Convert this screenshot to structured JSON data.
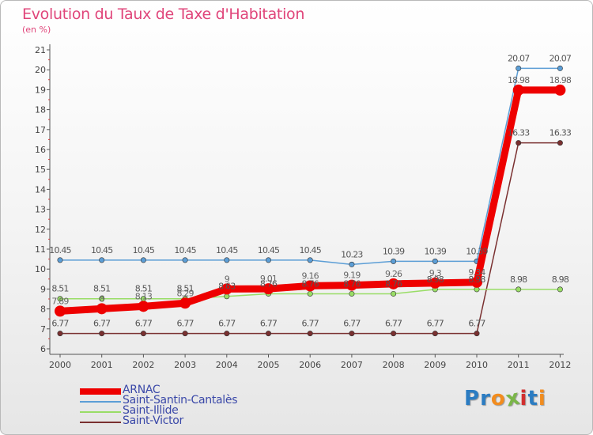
{
  "page": {
    "title": "Evolution du Taux de Taxe d'Habitation",
    "subtitle": "(en %)",
    "logo": [
      "P",
      "r",
      "o",
      "x",
      "i",
      "t",
      "i"
    ]
  },
  "colors": {
    "title": "#e0457a",
    "legend_text": "#3a48a8",
    "axis": "#444444",
    "logo": [
      "#2b7cc2",
      "#2b7cc2",
      "#f28c1e",
      "#7ab648",
      "#d12f2f",
      "#2b7cc2",
      "#f28c1e"
    ]
  },
  "chart_data": {
    "type": "line",
    "title": "Evolution du Taux de Taxe d'Habitation",
    "ylabel": "(en %)",
    "xlabel": "",
    "categories": [
      "2000",
      "2001",
      "2002",
      "2003",
      "2004",
      "2005",
      "2006",
      "2007",
      "2008",
      "2009",
      "2010",
      "2011",
      "2012"
    ],
    "ylim": [
      6,
      21
    ],
    "yticks": [
      6,
      7,
      8,
      9,
      10,
      11,
      12,
      13,
      14,
      15,
      16,
      17,
      18,
      19,
      20,
      21
    ],
    "grid": false,
    "legend_position": "bottom-left",
    "series": [
      {
        "name": "ARNAC",
        "color": "#ee0000",
        "values": [
          7.89,
          8.01,
          8.13,
          8.29,
          9.0,
          9.01,
          9.16,
          9.19,
          9.26,
          9.3,
          9.34,
          18.98,
          18.98
        ],
        "labels": [
          "7.89",
          "8",
          "8.13",
          "8.29",
          "9",
          "9.01",
          "9.16",
          "9.19",
          "9.26",
          "9.3",
          "9.34",
          "18.98",
          "18.98"
        ]
      },
      {
        "name": "Saint-Santin-Cantalès",
        "color": "#5c9ed6",
        "values": [
          10.45,
          10.45,
          10.45,
          10.45,
          10.45,
          10.45,
          10.45,
          10.23,
          10.39,
          10.39,
          10.39,
          20.07,
          20.07
        ],
        "labels": [
          "10.45",
          "10.45",
          "10.45",
          "10.45",
          "10.45",
          "10.45",
          "10.45",
          "10.23",
          "10.39",
          "10.39",
          "10.39",
          "20.07",
          "20.07"
        ]
      },
      {
        "name": "Saint-Illide",
        "color": "#99dd66",
        "values": [
          8.51,
          8.51,
          8.51,
          8.51,
          8.63,
          8.76,
          8.76,
          8.76,
          8.76,
          8.98,
          8.98,
          8.98,
          8.98
        ],
        "labels": [
          "8.51",
          "8.51",
          "8.51",
          "8.51",
          "8.63",
          "8.76",
          "8.76",
          "8.76",
          "8.76",
          "8.98",
          "8.98",
          "8.98",
          "8.98"
        ]
      },
      {
        "name": "Saint-Victor",
        "color": "#7a3030",
        "values": [
          6.77,
          6.77,
          6.77,
          6.77,
          6.77,
          6.77,
          6.77,
          6.77,
          6.77,
          6.77,
          6.77,
          16.33,
          16.33
        ],
        "labels": [
          "6.77",
          "6.77",
          "6.77",
          "6.77",
          "6.77",
          "6.77",
          "6.77",
          "6.77",
          "6.77",
          "6.77",
          "6.77",
          "16.33",
          "16.33"
        ]
      }
    ]
  }
}
